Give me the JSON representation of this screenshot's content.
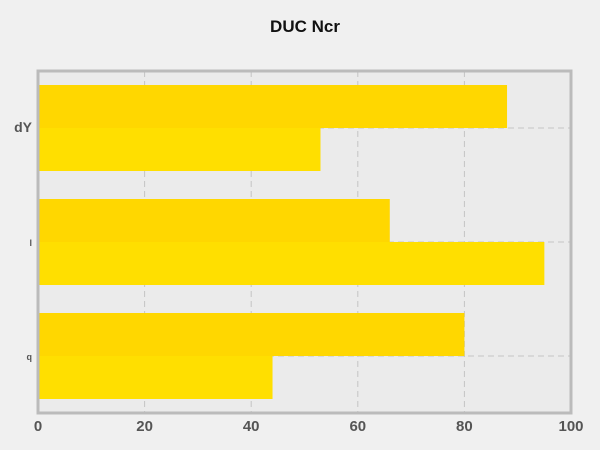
{
  "chart_data": {
    "type": "bar",
    "orientation": "horizontal",
    "title": "DUC Ncr",
    "xlabel": "",
    "ylabel": "",
    "categories": [
      "dY",
      "l",
      "q"
    ],
    "series": [
      {
        "values": [
          88,
          66,
          80
        ]
      },
      {
        "values": [
          53,
          95,
          44
        ]
      }
    ],
    "xlim": [
      0,
      100
    ],
    "xticks": [
      0,
      20,
      40,
      60,
      80,
      100
    ],
    "grid": true,
    "colors": [
      "#ffd700",
      "#ffdf00"
    ],
    "background": "#ebebeb",
    "frame_color": "#bbbbbb"
  }
}
